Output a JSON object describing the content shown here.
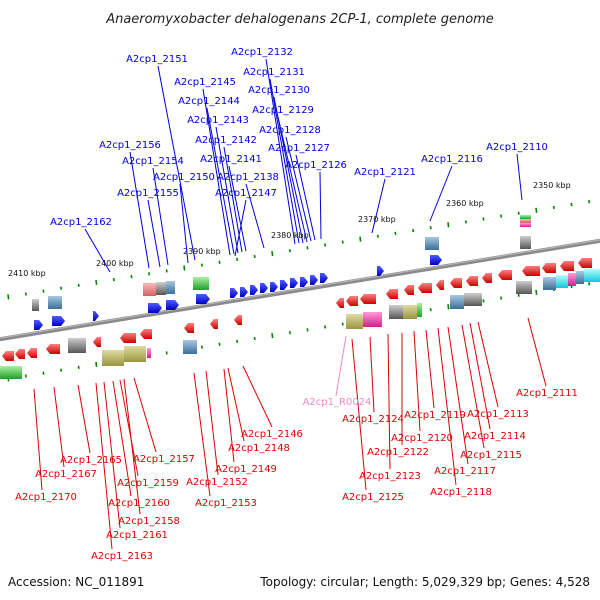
{
  "title": "Anaeromyxobacter dehalogenans 2CP-1, complete genome",
  "accession": "Accession: NC_011891",
  "summary": "Topology: circular; Length: 5,029,329 bp; Genes: 4,528",
  "colors": {
    "forward": "#0000dd",
    "reverse": "#dd0000",
    "rna": "#ee88cc",
    "backbone": "#888888",
    "tick": "#008800"
  },
  "scale_ticks": [
    "2350 kbp",
    "2360 kbp",
    "2370 kbp",
    "2380 kbp",
    "2390 kbp",
    "2400 kbp",
    "2410 kbp"
  ],
  "forward_genes": [
    "A2cp1_2110",
    "A2cp1_2116",
    "A2cp1_2121",
    "A2cp1_2126",
    "A2cp1_2127",
    "A2cp1_2128",
    "A2cp1_2129",
    "A2cp1_2130",
    "A2cp1_2131",
    "A2cp1_2132",
    "A2cp1_2138",
    "A2cp1_2141",
    "A2cp1_2142",
    "A2cp1_2143",
    "A2cp1_2144",
    "A2cp1_2145",
    "A2cp1_2147",
    "A2cp1_2150",
    "A2cp1_2151",
    "A2cp1_2154",
    "A2cp1_2155",
    "A2cp1_2156",
    "A2cp1_2162"
  ],
  "reverse_genes": [
    "A2cp1_2111",
    "A2cp1_2113",
    "A2cp1_2114",
    "A2cp1_2115",
    "A2cp1_2117",
    "A2cp1_2118",
    "A2cp1_2119",
    "A2cp1_2120",
    "A2cp1_2122",
    "A2cp1_2123",
    "A2cp1_2124",
    "A2cp1_2125",
    "A2cp1_2146",
    "A2cp1_2148",
    "A2cp1_2149",
    "A2cp1_2152",
    "A2cp1_2153",
    "A2cp1_2157",
    "A2cp1_2158",
    "A2cp1_2159",
    "A2cp1_2160",
    "A2cp1_2161",
    "A2cp1_2163",
    "A2cp1_2165",
    "A2cp1_2167",
    "A2cp1_2170"
  ],
  "rna_genes": [
    "A2cp1_R0024"
  ]
}
